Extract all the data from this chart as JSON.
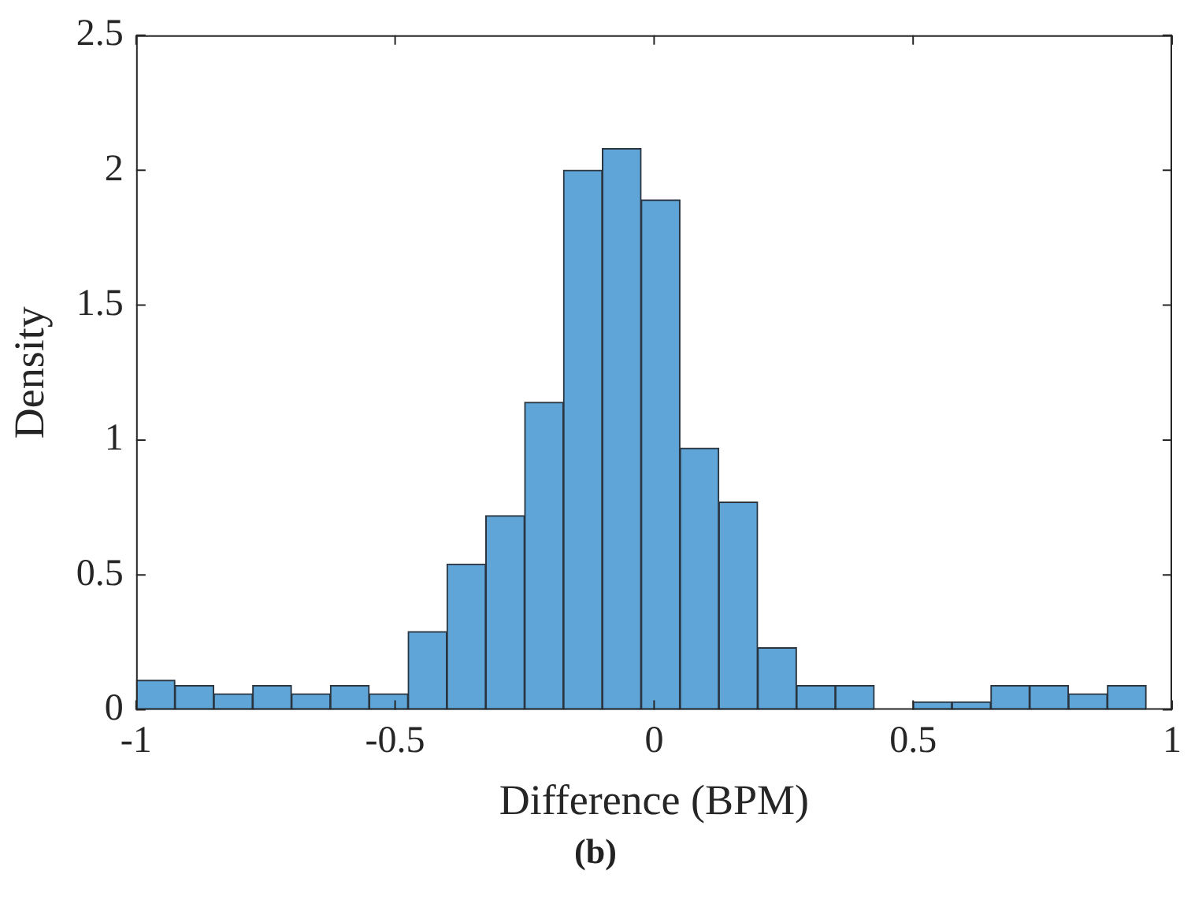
{
  "chart_data": {
    "type": "histogram",
    "xlabel": "Difference (BPM)",
    "ylabel": "Density",
    "annotations": [
      "(b)"
    ],
    "bins": [
      -1,
      -0.925,
      -0.85,
      -0.775,
      -0.7,
      -0.625,
      -0.55,
      -0.475,
      -0.4,
      -0.325,
      -0.25,
      -0.175,
      -0.1,
      -0.025,
      0.05,
      0.125,
      0.2,
      0.275,
      0.35,
      0.425,
      0.5,
      0.575,
      0.65,
      0.725,
      0.8,
      0.875,
      0.95
    ],
    "values": [
      0.11,
      0.09,
      0.06,
      0.09,
      0.06,
      0.09,
      0.06,
      0.29,
      0.54,
      0.72,
      1.14,
      2.0,
      2.08,
      1.89,
      0.97,
      0.77,
      0.23,
      0.09,
      0.09,
      0,
      0.03,
      0.03,
      0.09,
      0.09,
      0.06,
      0.09
    ],
    "color": "#5fa5d8",
    "xlim": [
      -1,
      1
    ],
    "xticks": [
      -1,
      -0.5,
      0,
      0.5,
      1
    ],
    "ylim": [
      0,
      2.5
    ],
    "yticks": [
      0,
      0.5,
      1,
      1.5,
      2,
      2.5
    ],
    "grid": false,
    "legend": false
  }
}
